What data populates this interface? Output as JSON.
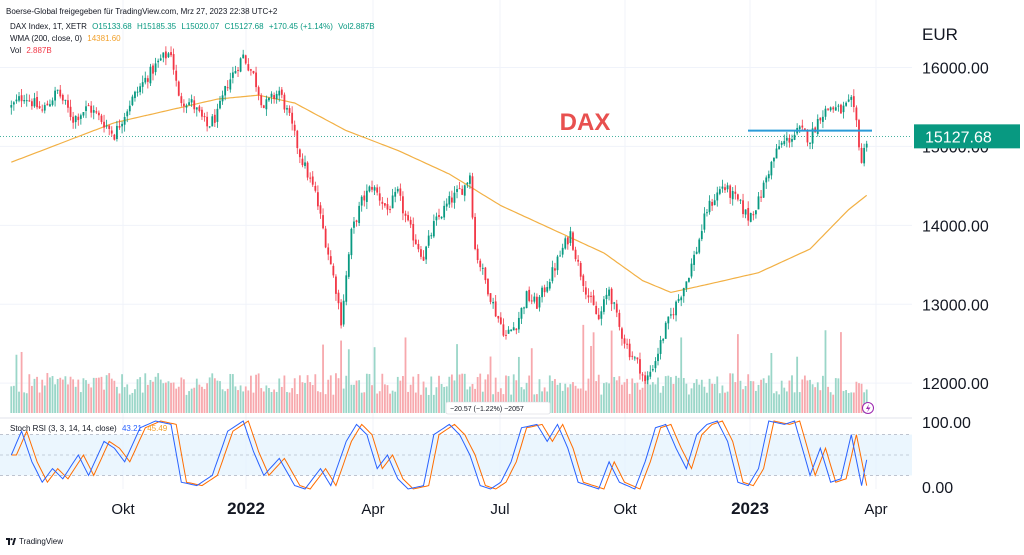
{
  "header": {
    "source": "Boerse-Global freigegeben für TradingView.com, Mrz 27, 2023 22:38 UTC+2",
    "symbol": "DAX Index, 1T, XETR",
    "ohlc": {
      "o": "O15133.68",
      "h": "H15185.35",
      "l": "L15020.07",
      "c": "C15127.68",
      "chg": "+170.45 (+1.14%)",
      "vol": "Vol2.887B"
    },
    "wma_label": "WMA (200, close, 0)",
    "wma_value": "14381.60",
    "vol_label": "Vol",
    "vol_value": "2.887B",
    "rsi_label": "Stoch RSI (3, 3, 14, 14, close)",
    "rsi_k": "43.21",
    "rsi_d": "45.49"
  },
  "annotation": {
    "title": "DAX",
    "price_badge": "15127.68",
    "tooltip": "−20.57 (−1.22%) −2057"
  },
  "footer": {
    "brand": "TradingView"
  },
  "colors": {
    "up": "#089981",
    "down": "#f23645",
    "wma": "#f2b044",
    "level": "#2a9bd8",
    "rsi_k": "#2962ff",
    "rsi_d": "#ff6d00",
    "title": "#e8504f"
  },
  "chart_data": {
    "type": "candlestick",
    "title": "DAX",
    "currency_label": "EUR",
    "y_ticks": [
      "16000.00",
      "15000.00",
      "14000.00",
      "13000.00",
      "12000.00"
    ],
    "rsi_ticks": [
      "100.00",
      "0.00"
    ],
    "x_ticks": [
      "Okt",
      "2022",
      "Apr",
      "Jul",
      "Okt",
      "2023",
      "Apr"
    ],
    "ylim": [
      11850,
      16450
    ],
    "horizontal_line": 15200,
    "last_close": 15127.68,
    "price_anchors": [
      [
        0,
        15500
      ],
      [
        5,
        15650
      ],
      [
        12,
        15450
      ],
      [
        18,
        15700
      ],
      [
        24,
        15350
      ],
      [
        30,
        15500
      ],
      [
        36,
        15300
      ],
      [
        40,
        15150
      ],
      [
        46,
        15550
      ],
      [
        52,
        15850
      ],
      [
        58,
        16100
      ],
      [
        62,
        16200
      ],
      [
        65,
        15600
      ],
      [
        70,
        15550
      ],
      [
        76,
        15250
      ],
      [
        80,
        15400
      ],
      [
        84,
        15800
      ],
      [
        90,
        16150
      ],
      [
        94,
        15900
      ],
      [
        98,
        15500
      ],
      [
        104,
        15700
      ],
      [
        108,
        15350
      ],
      [
        112,
        14900
      ],
      [
        118,
        14400
      ],
      [
        122,
        13800
      ],
      [
        126,
        13200
      ],
      [
        128,
        12800
      ],
      [
        132,
        13900
      ],
      [
        136,
        14300
      ],
      [
        140,
        14500
      ],
      [
        146,
        14200
      ],
      [
        150,
        14400
      ],
      [
        154,
        14000
      ],
      [
        160,
        13600
      ],
      [
        164,
        14000
      ],
      [
        170,
        14300
      ],
      [
        176,
        14500
      ],
      [
        178,
        14650
      ],
      [
        180,
        13700
      ],
      [
        184,
        13300
      ],
      [
        188,
        12900
      ],
      [
        192,
        12600
      ],
      [
        196,
        12750
      ],
      [
        200,
        13100
      ],
      [
        204,
        13000
      ],
      [
        210,
        13400
      ],
      [
        214,
        13700
      ],
      [
        217,
        13900
      ],
      [
        220,
        13500
      ],
      [
        224,
        13100
      ],
      [
        228,
        12800
      ],
      [
        232,
        13200
      ],
      [
        236,
        12700
      ],
      [
        240,
        12400
      ],
      [
        244,
        12200
      ],
      [
        246,
        12000
      ],
      [
        250,
        12300
      ],
      [
        254,
        12700
      ],
      [
        258,
        13000
      ],
      [
        262,
        13300
      ],
      [
        266,
        13700
      ],
      [
        270,
        14200
      ],
      [
        276,
        14500
      ],
      [
        282,
        14300
      ],
      [
        286,
        14100
      ],
      [
        290,
        14300
      ],
      [
        294,
        14700
      ],
      [
        298,
        15000
      ],
      [
        302,
        15100
      ],
      [
        306,
        15200
      ],
      [
        310,
        15100
      ],
      [
        314,
        15400
      ],
      [
        318,
        15500
      ],
      [
        322,
        15450
      ],
      [
        326,
        15550
      ],
      [
        328,
        15300
      ],
      [
        330,
        14800
      ],
      [
        332,
        15100
      ]
    ],
    "wma_anchors": [
      [
        0,
        14800
      ],
      [
        20,
        15050
      ],
      [
        40,
        15300
      ],
      [
        60,
        15450
      ],
      [
        80,
        15600
      ],
      [
        96,
        15650
      ],
      [
        110,
        15550
      ],
      [
        130,
        15200
      ],
      [
        150,
        14950
      ],
      [
        170,
        14650
      ],
      [
        190,
        14250
      ],
      [
        210,
        13950
      ],
      [
        230,
        13650
      ],
      [
        245,
        13300
      ],
      [
        256,
        13150
      ],
      [
        270,
        13250
      ],
      [
        290,
        13400
      ],
      [
        310,
        13700
      ],
      [
        325,
        14200
      ],
      [
        332,
        14380
      ]
    ],
    "rsi_anchors": [
      [
        0,
        50
      ],
      [
        4,
        85
      ],
      [
        8,
        40
      ],
      [
        12,
        10
      ],
      [
        16,
        30
      ],
      [
        20,
        15
      ],
      [
        26,
        50
      ],
      [
        30,
        20
      ],
      [
        36,
        70
      ],
      [
        40,
        60
      ],
      [
        44,
        40
      ],
      [
        50,
        90
      ],
      [
        56,
        100
      ],
      [
        62,
        95
      ],
      [
        66,
        10
      ],
      [
        72,
        5
      ],
      [
        78,
        20
      ],
      [
        84,
        85
      ],
      [
        90,
        100
      ],
      [
        94,
        55
      ],
      [
        98,
        20
      ],
      [
        104,
        45
      ],
      [
        110,
        5
      ],
      [
        114,
        0
      ],
      [
        120,
        30
      ],
      [
        124,
        5
      ],
      [
        130,
        70
      ],
      [
        134,
        95
      ],
      [
        138,
        80
      ],
      [
        142,
        30
      ],
      [
        146,
        50
      ],
      [
        150,
        15
      ],
      [
        154,
        0
      ],
      [
        160,
        5
      ],
      [
        164,
        80
      ],
      [
        170,
        95
      ],
      [
        174,
        80
      ],
      [
        178,
        50
      ],
      [
        182,
        5
      ],
      [
        186,
        0
      ],
      [
        190,
        10
      ],
      [
        194,
        40
      ],
      [
        198,
        90
      ],
      [
        204,
        95
      ],
      [
        208,
        70
      ],
      [
        212,
        95
      ],
      [
        216,
        60
      ],
      [
        220,
        10
      ],
      [
        224,
        5
      ],
      [
        228,
        0
      ],
      [
        232,
        40
      ],
      [
        236,
        10
      ],
      [
        242,
        0
      ],
      [
        246,
        40
      ],
      [
        250,
        90
      ],
      [
        254,
        95
      ],
      [
        258,
        60
      ],
      [
        262,
        30
      ],
      [
        266,
        80
      ],
      [
        270,
        95
      ],
      [
        274,
        100
      ],
      [
        278,
        70
      ],
      [
        282,
        10
      ],
      [
        286,
        5
      ],
      [
        290,
        30
      ],
      [
        294,
        100
      ],
      [
        300,
        95
      ],
      [
        304,
        100
      ],
      [
        310,
        20
      ],
      [
        314,
        60
      ],
      [
        318,
        10
      ],
      [
        322,
        15
      ],
      [
        326,
        80
      ],
      [
        330,
        5
      ],
      [
        332,
        43
      ]
    ]
  }
}
